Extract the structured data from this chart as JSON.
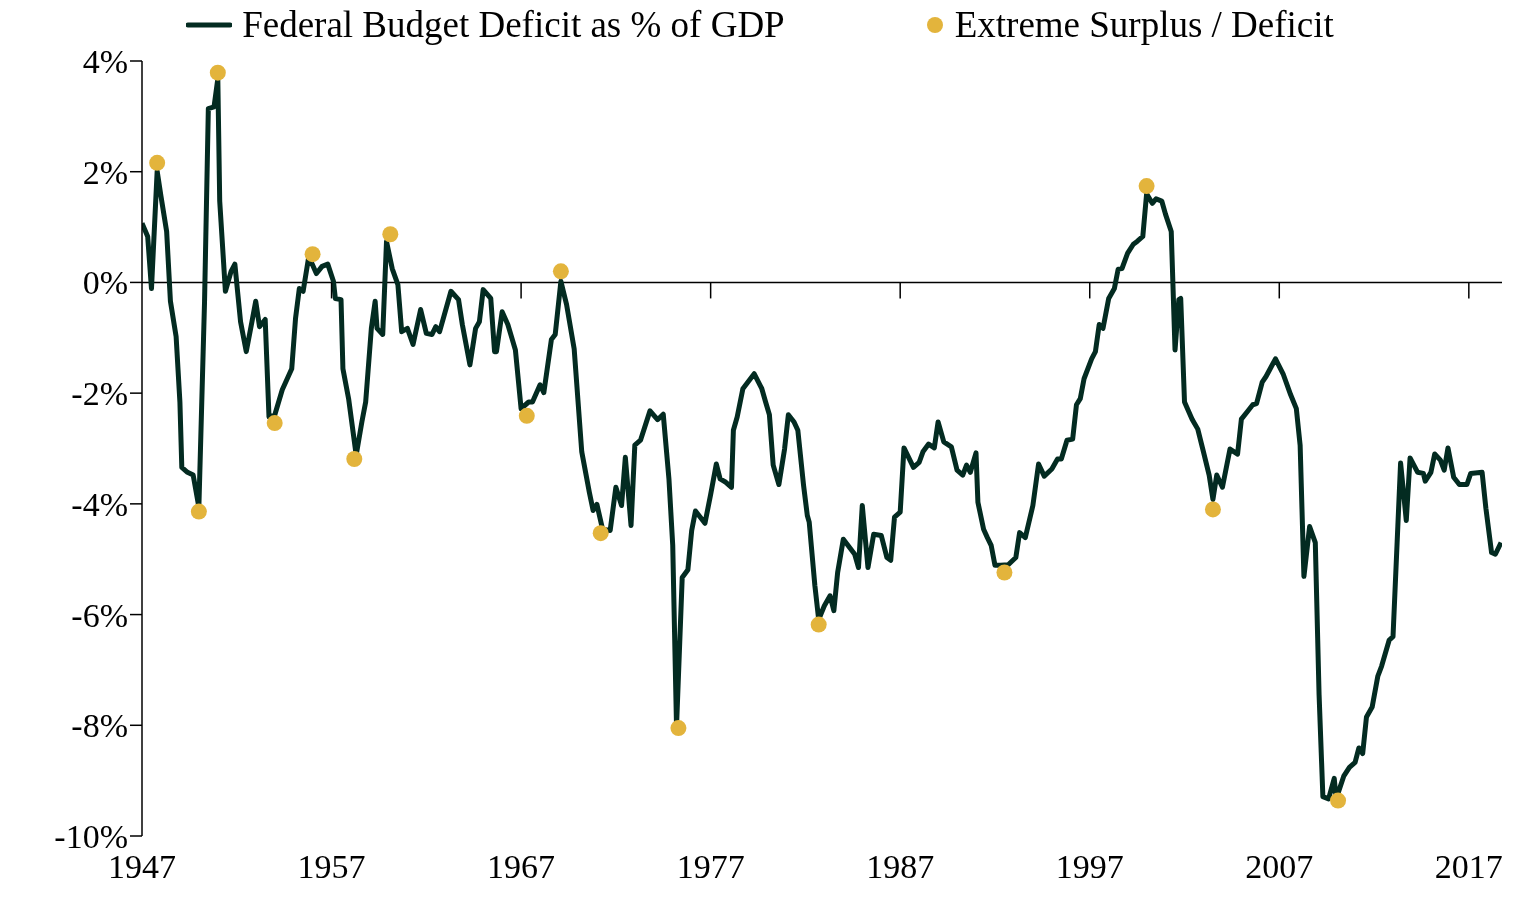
{
  "chart_data": {
    "type": "line",
    "xlim": [
      1947,
      2018.75
    ],
    "xticks": [
      1947,
      1957,
      1967,
      1977,
      1987,
      1997,
      2007,
      2017
    ],
    "ylim": [
      -10,
      4
    ],
    "yticks": [
      {
        "value": 4,
        "label": "4%"
      },
      {
        "value": 2,
        "label": "2%"
      },
      {
        "value": 0,
        "label": "0%"
      },
      {
        "value": -2,
        "label": "-2%"
      },
      {
        "value": -4,
        "label": "-4%"
      },
      {
        "value": -6,
        "label": "-6%"
      },
      {
        "value": -8,
        "label": "-8%"
      },
      {
        "value": -10,
        "label": "-10%"
      }
    ],
    "legend": "top",
    "series": [
      {
        "type": "line",
        "name": "Federal Budget Deficit as % of GDP",
        "color": "#032b21",
        "x": [
          1947.0,
          1947.3,
          1947.5,
          1947.8,
          1948.0,
          1948.3,
          1948.5,
          1948.8,
          1949.0,
          1949.1,
          1949.4,
          1949.7,
          1950.0,
          1950.3,
          1950.5,
          1950.8,
          1951.0,
          1951.1,
          1951.4,
          1951.7,
          1951.9,
          1952.2,
          1952.5,
          1952.8,
          1953.0,
          1953.2,
          1953.5,
          1953.7,
          1954.0,
          1954.4,
          1954.9,
          1955.1,
          1955.3,
          1955.5,
          1955.8,
          1956.2,
          1956.5,
          1956.8,
          1957.1,
          1957.2,
          1957.5,
          1957.6,
          1957.9,
          1958.3,
          1958.6,
          1958.8,
          1959.1,
          1959.3,
          1959.4,
          1959.7,
          1959.9,
          1960.2,
          1960.5,
          1960.7,
          1961.0,
          1961.3,
          1961.7,
          1962.0,
          1962.3,
          1962.5,
          1962.7,
          1963.3,
          1963.7,
          1963.9,
          1964.3,
          1964.6,
          1964.8,
          1965.0,
          1965.4,
          1965.6,
          1965.7,
          1966.0,
          1966.3,
          1966.7,
          1967.0,
          1967.4,
          1967.6,
          1968.0,
          1968.2,
          1968.6,
          1968.8,
          1969.1,
          1969.4,
          1969.8,
          1970.2,
          1970.6,
          1970.8,
          1971.0,
          1971.3,
          1971.7,
          1972.0,
          1972.3,
          1972.5,
          1972.8,
          1973.0,
          1973.3,
          1973.8,
          1974.2,
          1974.5,
          1974.8,
          1975.0,
          1975.2,
          1975.5,
          1975.8,
          1976.0,
          1976.2,
          1976.7,
          1977.0,
          1977.3,
          1977.5,
          1977.8,
          1978.1,
          1978.2,
          1978.4,
          1978.7,
          1979.3,
          1979.7,
          1979.9,
          1980.1,
          1980.3,
          1980.6,
          1980.9,
          1981.1,
          1981.4,
          1981.6,
          1981.9,
          1982.1,
          1982.2,
          1982.5,
          1982.7,
          1983.0,
          1983.3,
          1983.5,
          1983.7,
          1984.0,
          1984.6,
          1984.8,
          1985.0,
          1985.3,
          1985.6,
          1986.0,
          1986.3,
          1986.5,
          1986.7,
          1987.0,
          1987.2,
          1987.7,
          1988.0,
          1988.2,
          1988.5,
          1988.8,
          1989.0,
          1989.3,
          1989.7,
          1990.0,
          1990.3,
          1990.5,
          1990.7,
          1991.0,
          1991.1,
          1991.4,
          1991.6,
          1991.8,
          1992.0,
          1992.3,
          1992.7,
          1993.1,
          1993.3,
          1993.6,
          1994.0,
          1994.3,
          1994.6,
          1995.0,
          1995.3,
          1995.5,
          1995.8,
          1996.1,
          1996.3,
          1996.5,
          1996.7,
          1997.1,
          1997.3,
          1997.5,
          1997.7,
          1998.0,
          1998.3,
          1998.5,
          1998.7,
          1999.0,
          1999.3,
          1999.5,
          1999.8,
          2000.0,
          2000.3,
          2000.5,
          2000.8,
          2001.0,
          2001.3,
          2001.5,
          2001.7,
          2001.8,
          2002.0,
          2002.4,
          2002.7,
          2003.0,
          2003.3,
          2003.5,
          2003.7,
          2004.0,
          2004.4,
          2004.8,
          2005.0,
          2005.3,
          2005.6,
          2005.8,
          2006.1,
          2006.3,
          2006.8,
          2007.2,
          2007.6,
          2007.9,
          2008.1,
          2008.3,
          2008.6,
          2008.9,
          2009.1,
          2009.3,
          2009.6,
          2009.9,
          2010.0,
          2010.4,
          2010.7,
          2011.0,
          2011.2,
          2011.4,
          2011.6,
          2011.9,
          2012.2,
          2012.4,
          2012.8,
          2013.0,
          2013.4,
          2013.7,
          2013.9,
          2014.3,
          2014.6,
          2014.7,
          2015.0,
          2015.2,
          2015.5,
          2015.7,
          2015.9,
          2016.2,
          2016.5,
          2016.9,
          2017.1,
          2017.7,
          2017.9,
          2018.2,
          2018.4,
          2018.7
        ],
        "values": [
          1.07,
          0.83,
          -0.11,
          2.01,
          1.56,
          0.92,
          -0.34,
          -0.98,
          -2.16,
          -3.34,
          -3.43,
          -3.48,
          -4.06,
          -0.34,
          3.14,
          3.17,
          3.68,
          1.47,
          -0.16,
          0.2,
          0.33,
          -0.71,
          -1.25,
          -0.71,
          -0.34,
          -0.8,
          -0.67,
          -2.43,
          -2.4,
          -1.94,
          -1.56,
          -0.65,
          -0.11,
          -0.16,
          0.47,
          0.16,
          0.29,
          0.33,
          0.02,
          -0.29,
          -0.31,
          -1.56,
          -2.1,
          -3.12,
          -2.52,
          -2.16,
          -0.83,
          -0.34,
          -0.83,
          -0.94,
          0.74,
          0.25,
          -0.04,
          -0.89,
          -0.83,
          -1.12,
          -0.49,
          -0.92,
          -0.94,
          -0.8,
          -0.89,
          -0.16,
          -0.31,
          -0.76,
          -1.49,
          -0.83,
          -0.71,
          -0.13,
          -0.29,
          -1.25,
          -1.25,
          -0.53,
          -0.76,
          -1.22,
          -2.28,
          -2.16,
          -2.16,
          -1.85,
          -1.99,
          -1.03,
          -0.94,
          0.02,
          -0.4,
          -1.2,
          -3.06,
          -3.79,
          -4.12,
          -4.01,
          -4.46,
          -4.48,
          -3.7,
          -4.03,
          -3.16,
          -4.39,
          -2.94,
          -2.85,
          -2.32,
          -2.48,
          -2.38,
          -3.55,
          -4.75,
          -8.02,
          -5.33,
          -5.19,
          -4.48,
          -4.13,
          -4.35,
          -3.83,
          -3.28,
          -3.55,
          -3.61,
          -3.7,
          -2.67,
          -2.43,
          -1.92,
          -1.65,
          -1.92,
          -2.16,
          -2.39,
          -3.3,
          -3.65,
          -3.01,
          -2.39,
          -2.52,
          -2.67,
          -3.66,
          -4.21,
          -4.33,
          -5.48,
          -6.09,
          -5.84,
          -5.66,
          -5.93,
          -5.24,
          -4.64,
          -4.91,
          -5.15,
          -4.03,
          -5.15,
          -4.55,
          -4.57,
          -4.97,
          -5.02,
          -4.24,
          -4.15,
          -2.99,
          -3.34,
          -3.25,
          -3.06,
          -2.92,
          -2.99,
          -2.52,
          -2.88,
          -2.97,
          -3.39,
          -3.48,
          -3.3,
          -3.43,
          -3.08,
          -3.97,
          -4.46,
          -4.61,
          -4.75,
          -5.11,
          -5.11,
          -5.1,
          -4.97,
          -4.52,
          -4.61,
          -4.03,
          -3.28,
          -3.5,
          -3.37,
          -3.19,
          -3.19,
          -2.85,
          -2.83,
          -2.21,
          -2.1,
          -1.74,
          -1.38,
          -1.25,
          -0.76,
          -0.83,
          -0.29,
          -0.11,
          0.24,
          0.25,
          0.53,
          0.69,
          0.74,
          0.83,
          1.6,
          1.43,
          1.51,
          1.47,
          1.23,
          0.92,
          -1.22,
          -0.31,
          -0.29,
          -2.16,
          -2.47,
          -2.65,
          -3.06,
          -3.48,
          -3.92,
          -3.48,
          -3.7,
          -3.01,
          -3.1,
          -2.47,
          -2.34,
          -2.21,
          -2.19,
          -1.8,
          -1.7,
          -1.38,
          -1.65,
          -2.03,
          -2.28,
          -2.94,
          -5.31,
          -4.41,
          -4.7,
          -7.45,
          -9.29,
          -9.33,
          -8.96,
          -9.33,
          -8.92,
          -8.76,
          -8.67,
          -8.41,
          -8.51,
          -7.85,
          -7.67,
          -7.11,
          -6.93,
          -6.46,
          -6.4,
          -3.26,
          -4.3,
          -3.17,
          -3.43,
          -3.45,
          -3.59,
          -3.43,
          -3.1,
          -3.21,
          -3.39,
          -2.99,
          -3.52,
          -3.65,
          -3.65,
          -3.45,
          -3.43,
          -4.08,
          -4.88,
          -4.91,
          -4.7
        ]
      },
      {
        "type": "scatter",
        "name": "Extreme Surplus / Deficit",
        "color": "#e3b43c",
        "marker": "circle",
        "x": [
          1947.8,
          1950.0,
          1951.0,
          1954.0,
          1956.0,
          1958.2,
          1960.1,
          1967.3,
          1969.1,
          1971.2,
          1975.3,
          1982.7,
          1992.5,
          2000.0,
          2003.5,
          2010.1
        ],
        "values": [
          2.16,
          -4.14,
          3.79,
          -2.54,
          0.51,
          -3.19,
          0.87,
          -2.41,
          0.2,
          -4.53,
          -8.05,
          -6.18,
          -5.24,
          1.74,
          -4.1,
          -9.36
        ]
      }
    ]
  }
}
